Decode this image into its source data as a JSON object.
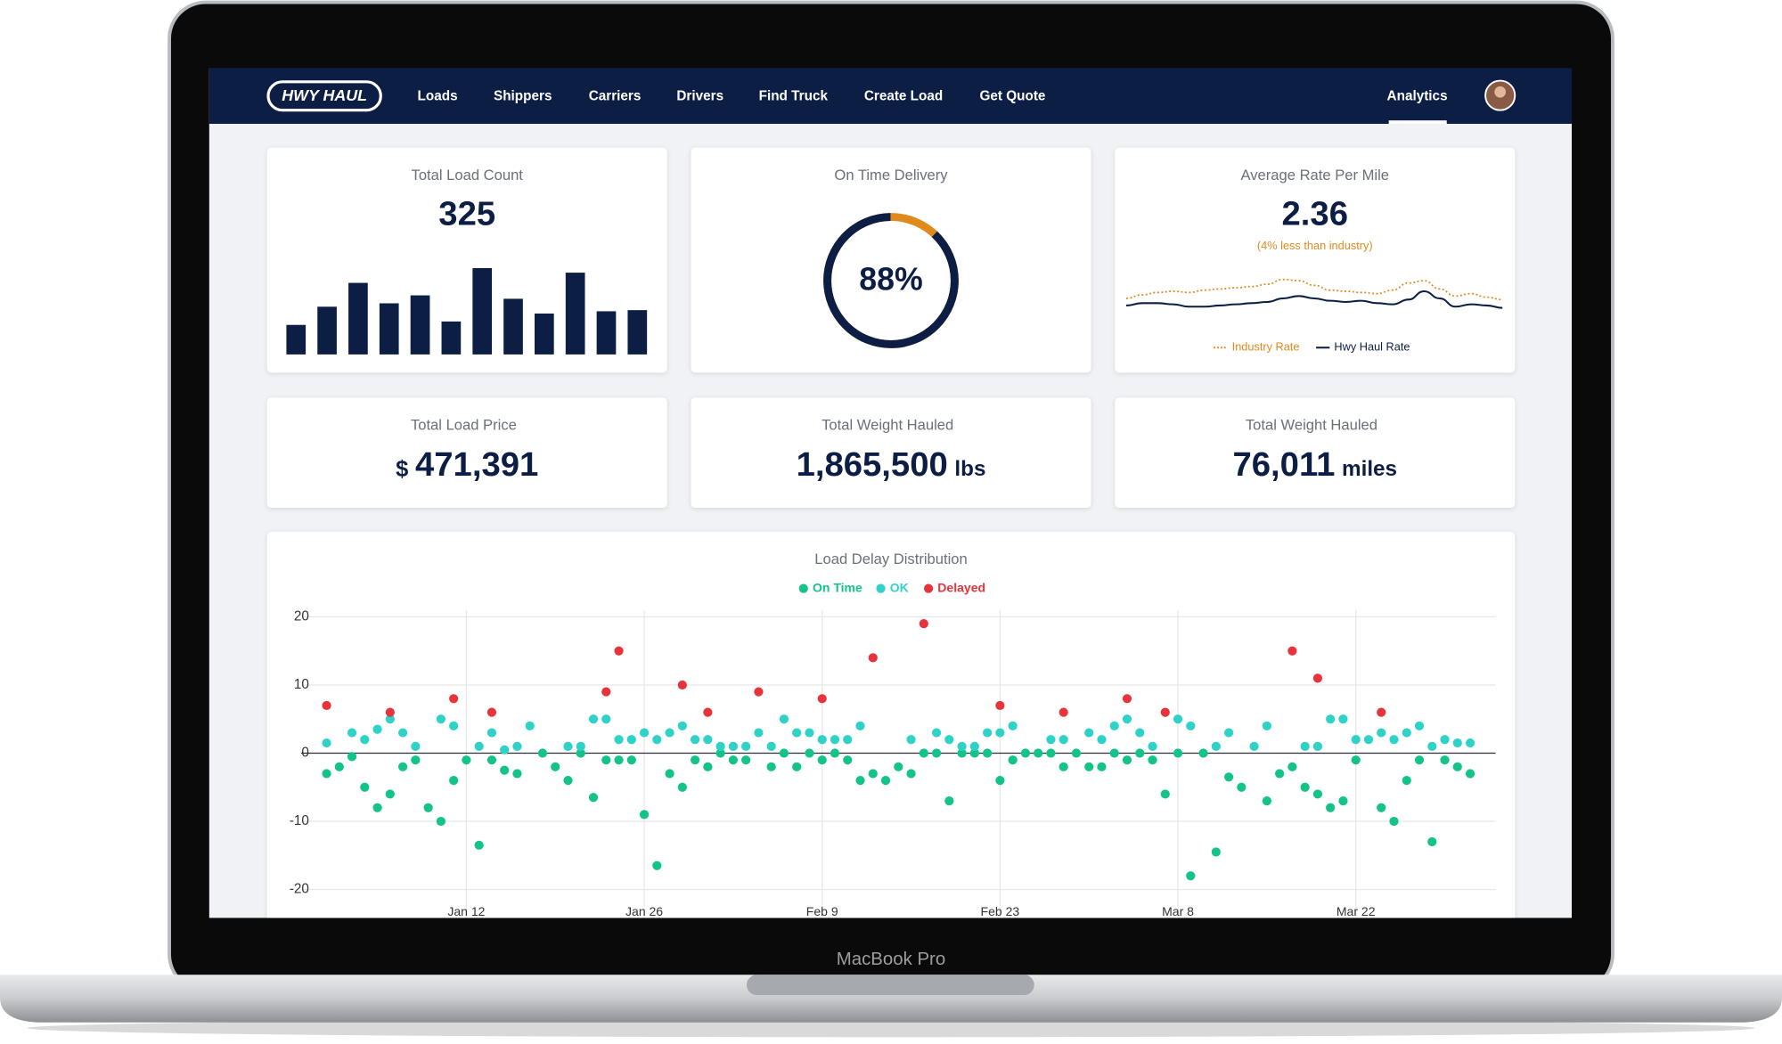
{
  "nav": {
    "logo": "HWY HAUL",
    "items": [
      "Loads",
      "Shippers",
      "Carriers",
      "Drivers",
      "Find Truck",
      "Create Load",
      "Get Quote"
    ],
    "active": "Analytics"
  },
  "stats": [
    {
      "title": "Total Load Count",
      "value": 325
    },
    {
      "title": "Average Rate Per Mile",
      "value": 2.36,
      "note": "(4% less than industry)"
    },
    {
      "title": "Total Load Price",
      "prefix": "$",
      "value": "471,391"
    },
    {
      "title": "Total Weight Hauled",
      "value": "1,865,500",
      "unit": "lbs"
    },
    {
      "title": "Total Weight Hauled",
      "value": "76,011",
      "unit": "miles"
    }
  ],
  "device": "MacBook Pro",
  "chart_data": [
    {
      "type": "bar",
      "color": "#0d1e45",
      "values": [
        26,
        42,
        63,
        45,
        52,
        29,
        76,
        49,
        36,
        72,
        38,
        39
      ]
    },
    {
      "type": "donut",
      "title": "On Time Delivery",
      "values": [
        88
      ],
      "value_labels": [
        "88%"
      ],
      "color": "#0d1e45",
      "rest_color": "#e08a1e"
    },
    {
      "type": "line",
      "series": [
        {
          "name": "Industry Rate",
          "color": "#e08a1e",
          "dotted": true,
          "values": [
            2.38,
            2.41,
            2.43,
            2.44,
            2.43,
            2.45,
            2.46,
            2.47,
            2.48,
            2.5,
            2.54,
            2.53,
            2.49,
            2.45,
            2.44,
            2.43,
            2.42,
            2.45,
            2.51,
            2.53,
            2.46,
            2.4,
            2.42,
            2.39,
            2.37
          ]
        },
        {
          "name": "Hwy Haul Rate",
          "color": "#0d1e45",
          "dotted": false,
          "values": [
            2.32,
            2.34,
            2.34,
            2.33,
            2.31,
            2.31,
            2.32,
            2.33,
            2.34,
            2.35,
            2.38,
            2.4,
            2.38,
            2.36,
            2.35,
            2.36,
            2.34,
            2.33,
            2.37,
            2.44,
            2.38,
            2.31,
            2.33,
            2.32,
            2.3
          ]
        }
      ]
    },
    {
      "type": "scatter",
      "title": "Load Delay Distribution",
      "grid": true,
      "xlim": [
        -1,
        93
      ],
      "xticks": [
        {
          "value": 12,
          "label": "Jan 12"
        },
        {
          "value": 26,
          "label": "Jan 26"
        },
        {
          "value": 40,
          "label": "Feb 9"
        },
        {
          "value": 54,
          "label": "Feb 23"
        },
        {
          "value": 68,
          "label": "Mar 8"
        },
        {
          "value": 82,
          "label": "Mar 22"
        }
      ],
      "ylim": [
        -24,
        21
      ],
      "yticks": [
        -20,
        -10,
        0,
        10,
        20
      ],
      "series": [
        {
          "name": "On Time",
          "color": "#14c389",
          "x": [
            1,
            2,
            3,
            4,
            5,
            6,
            7,
            8,
            9,
            10,
            11,
            12,
            13,
            14,
            15,
            16,
            18,
            19,
            20,
            21,
            22,
            23,
            24,
            25,
            26,
            27,
            28,
            29,
            30,
            31,
            32,
            33,
            34,
            36,
            37,
            38,
            39,
            40,
            41,
            42,
            43,
            44,
            45,
            46,
            47,
            48,
            49,
            50,
            51,
            52,
            53,
            54,
            55,
            56,
            57,
            58,
            59,
            60,
            61,
            62,
            63,
            64,
            65,
            66,
            67,
            68,
            69,
            70,
            71,
            72,
            73,
            75,
            76,
            77,
            78,
            79,
            80,
            81,
            82,
            84,
            85,
            86,
            87,
            88,
            89,
            90,
            91
          ],
          "values": [
            -3,
            -2,
            -0.5,
            -5,
            -8,
            -6,
            -2,
            -1,
            -8,
            -10,
            -4,
            -1,
            -13.5,
            -1,
            -2.5,
            -3,
            0,
            -2,
            -4,
            0,
            -6.5,
            -1,
            -1,
            -1,
            -9,
            -16.5,
            -3,
            -5,
            -1,
            -2,
            0,
            -1,
            -1,
            -2,
            0,
            -2,
            0,
            -1,
            0,
            -1,
            -4,
            -3,
            -4,
            -2,
            -3,
            0,
            0,
            -7,
            0,
            0,
            0,
            -4,
            -1,
            0,
            0,
            0,
            -2,
            0,
            -2,
            -2,
            0,
            -1,
            0,
            -1,
            -6,
            0,
            -18,
            0,
            -14.5,
            -3.5,
            -5,
            -7,
            -3,
            -2,
            -5,
            -6,
            -8,
            -7,
            -1,
            -8,
            -10,
            -4,
            -1,
            -13,
            -1,
            -2,
            -3
          ]
        },
        {
          "name": "OK",
          "color": "#2fd2c7",
          "x": [
            1,
            3,
            4,
            5,
            6,
            7,
            8,
            10,
            11,
            13,
            14,
            15,
            16,
            17,
            20,
            21,
            22,
            23,
            24,
            25,
            26,
            27,
            28,
            29,
            30,
            31,
            32,
            33,
            34,
            35,
            36,
            37,
            38,
            39,
            40,
            41,
            42,
            43,
            47,
            49,
            50,
            51,
            52,
            53,
            54,
            55,
            58,
            59,
            61,
            62,
            63,
            64,
            65,
            66,
            68,
            69,
            71,
            72,
            74,
            75,
            78,
            79,
            80,
            81,
            82,
            83,
            84,
            85,
            86,
            87,
            88,
            89,
            90,
            91
          ],
          "values": [
            1.5,
            3,
            2,
            3.5,
            5,
            3,
            1,
            5,
            4,
            1,
            3,
            0.5,
            1,
            4,
            1,
            1,
            5,
            5,
            2,
            2,
            3,
            2,
            3,
            4,
            2,
            2,
            1,
            1,
            1,
            3,
            1,
            5,
            3,
            3,
            2,
            2,
            2,
            4,
            2,
            3,
            2,
            1,
            1,
            3,
            3,
            4,
            2,
            2,
            3,
            2,
            4,
            5,
            3,
            1,
            5,
            4,
            1,
            3,
            1,
            4,
            1,
            1,
            5,
            5,
            2,
            2,
            3,
            2,
            3,
            4,
            1,
            2,
            1.5,
            1.5
          ]
        },
        {
          "name": "Delayed",
          "color": "#e8333a",
          "x": [
            1,
            6,
            11,
            14,
            23,
            24,
            29,
            31,
            35,
            40,
            44,
            48,
            54,
            59,
            64,
            67,
            77,
            79,
            84
          ],
          "values": [
            7,
            6,
            8,
            6,
            9,
            15,
            10,
            6,
            9,
            8,
            14,
            19,
            7,
            6,
            8,
            6,
            15,
            11,
            6
          ]
        }
      ]
    }
  ]
}
